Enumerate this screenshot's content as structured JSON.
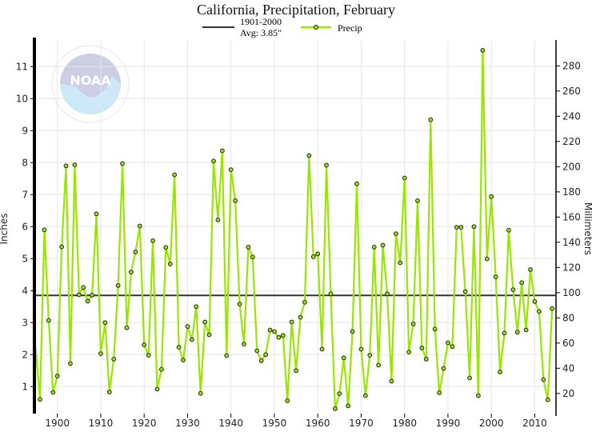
{
  "chart_data": {
    "type": "line",
    "title": "California, Precipitation, February",
    "ylabel": "Inches",
    "ylabel_right": "Millimeters",
    "xlim": [
      1895,
      2014
    ],
    "ylim": [
      0,
      11.7
    ],
    "x_ticks": [
      1900,
      1910,
      1920,
      1930,
      1940,
      1950,
      1960,
      1970,
      1980,
      1990,
      2000,
      2010
    ],
    "y_ticks": [
      1,
      2,
      3,
      4,
      5,
      6,
      7,
      8,
      9,
      10,
      11
    ],
    "y_ticks_right_mm": [
      20,
      40,
      60,
      80,
      100,
      120,
      140,
      160,
      180,
      200,
      220,
      240,
      260,
      280
    ],
    "grid": true,
    "legend": {
      "position": "top",
      "entries": [
        {
          "label_line1": "1901-2000",
          "label_line2": "Avg: 3.85\"",
          "color": "#333333"
        },
        {
          "label_line1": "Precip",
          "color": "#99e600"
        }
      ]
    },
    "average": {
      "name": "1901-2000 Avg",
      "value": 3.85,
      "color": "#333333"
    },
    "series": [
      {
        "name": "Precip",
        "color": "#99e600",
        "x": [
          1895,
          1896,
          1897,
          1898,
          1899,
          1900,
          1901,
          1902,
          1903,
          1904,
          1905,
          1906,
          1907,
          1908,
          1909,
          1910,
          1911,
          1912,
          1913,
          1914,
          1915,
          1916,
          1917,
          1918,
          1919,
          1920,
          1921,
          1922,
          1923,
          1924,
          1925,
          1926,
          1927,
          1928,
          1929,
          1930,
          1931,
          1932,
          1933,
          1934,
          1935,
          1936,
          1937,
          1938,
          1939,
          1940,
          1941,
          1942,
          1943,
          1944,
          1945,
          1946,
          1947,
          1948,
          1949,
          1950,
          1951,
          1952,
          1953,
          1954,
          1955,
          1956,
          1957,
          1958,
          1959,
          1960,
          1961,
          1962,
          1963,
          1964,
          1965,
          1966,
          1967,
          1968,
          1969,
          1970,
          1971,
          1972,
          1973,
          1974,
          1975,
          1976,
          1977,
          1978,
          1979,
          1980,
          1981,
          1982,
          1983,
          1984,
          1985,
          1986,
          1987,
          1988,
          1989,
          1990,
          1991,
          1992,
          1993,
          1994,
          1995,
          1996,
          1997,
          1998,
          1999,
          2000,
          2001,
          2002,
          2003,
          2004,
          2005,
          2006,
          2007,
          2008,
          2009,
          2010,
          2011,
          2012,
          2013,
          2014
        ],
        "values": [
          2.2,
          0.6,
          5.9,
          3.07,
          0.82,
          1.33,
          5.37,
          7.9,
          1.72,
          7.93,
          3.87,
          4.1,
          3.67,
          3.86,
          6.4,
          2.03,
          3.0,
          0.83,
          1.86,
          4.16,
          7.97,
          2.84,
          4.58,
          5.21,
          6.02,
          2.31,
          1.98,
          5.56,
          0.92,
          1.54,
          5.35,
          4.83,
          7.62,
          2.23,
          1.83,
          2.88,
          2.47,
          3.5,
          0.79,
          3.02,
          2.62,
          8.05,
          6.21,
          8.37,
          1.97,
          7.78,
          6.81,
          3.58,
          2.33,
          5.36,
          5.05,
          2.12,
          1.81,
          2.0,
          2.77,
          2.72,
          2.54,
          2.6,
          0.56,
          3.02,
          1.5,
          3.17,
          3.64,
          8.22,
          5.06,
          5.15,
          2.17,
          7.92,
          3.9,
          0.31,
          0.78,
          1.9,
          0.4,
          2.72,
          7.34,
          2.17,
          0.72,
          1.98,
          5.36,
          1.67,
          5.42,
          3.9,
          1.17,
          5.78,
          4.87,
          7.52,
          2.08,
          2.96,
          6.81,
          2.21,
          1.86,
          9.34,
          2.8,
          0.81,
          1.57,
          2.37,
          2.25,
          5.98,
          5.98,
          3.97,
          1.27,
          6.0,
          0.72,
          11.51,
          4.99,
          6.94,
          4.43,
          1.46,
          2.67,
          5.89,
          4.03,
          2.7,
          4.25,
          2.77,
          4.66,
          3.66,
          3.35,
          1.22,
          0.59,
          3.44
        ]
      }
    ]
  },
  "logo": {
    "text": "NOAA",
    "ring_text": "NATIONAL OCEANIC AND ATMOSPHERIC ADMINISTRATION · U.S. DEPARTMENT OF COMMERCE"
  }
}
